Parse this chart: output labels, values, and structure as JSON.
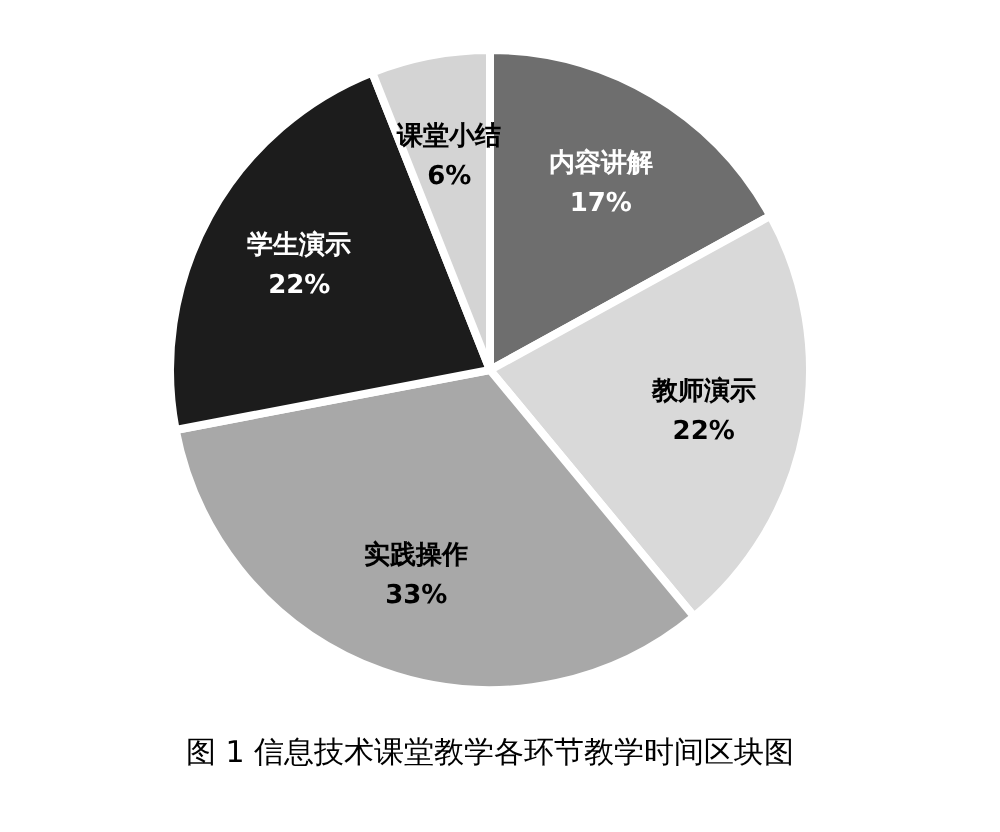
{
  "chart_data": {
    "type": "pie",
    "title": "图 1  信息技术课堂教学各环节教学时间区块图",
    "categories": [
      "内容讲解",
      "教师演示",
      "实践操作",
      "学生演示",
      "课堂小结"
    ],
    "values": [
      17,
      22,
      33,
      22,
      6
    ],
    "value_labels": [
      "17%",
      "22%",
      "33%",
      "22%",
      "6%"
    ],
    "colors": [
      "#6e6e6e",
      "#d9d9d9",
      "#a8a8a8",
      "#1c1c1c",
      "#d4d4d4"
    ],
    "legend": false
  }
}
